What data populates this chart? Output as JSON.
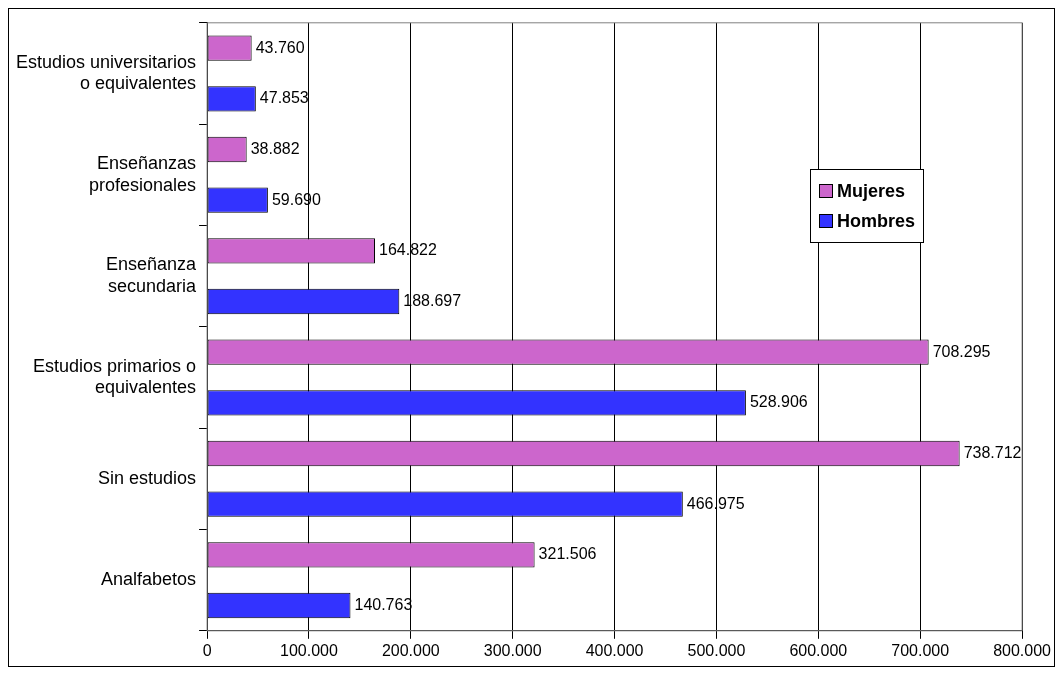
{
  "chart_data": {
    "type": "bar",
    "orientation": "horizontal",
    "categories": [
      "Estudios universitarios\no equivalentes",
      "Enseñanzas\nprofesionales",
      "Enseñanza\nsecundaria",
      "Estudios primarios o\nequivalentes",
      "Sin estudios",
      "Analfabetos"
    ],
    "series": [
      {
        "name": "Mujeres",
        "color": "#cc66cc",
        "values": [
          43760,
          38882,
          164822,
          708295,
          738712,
          321506
        ],
        "value_labels": [
          "43.760",
          "38.882",
          "164.822",
          "708.295",
          "738.712",
          "321.506"
        ]
      },
      {
        "name": "Hombres",
        "color": "#3333ff",
        "values": [
          47853,
          59690,
          188697,
          528906,
          466975,
          140763
        ],
        "value_labels": [
          "47.853",
          "59.690",
          "188.697",
          "528.906",
          "466.975",
          "140.763"
        ]
      }
    ],
    "xlim": [
      0,
      800000
    ],
    "xticks": [
      0,
      {
        "value": 100000,
        "label": "100.000"
      },
      {
        "value": 200000,
        "label": "200.000"
      },
      {
        "value": 300000,
        "label": "300.000"
      },
      {
        "value": 400000,
        "label": "400.000"
      },
      {
        "value": 500000,
        "label": "500.000"
      },
      {
        "value": 600000,
        "label": "600.000"
      },
      {
        "value": 700000,
        "label": "700.000"
      },
      {
        "value": 800000,
        "label": "800.000"
      }
    ],
    "grid": "x",
    "legend": "right"
  }
}
